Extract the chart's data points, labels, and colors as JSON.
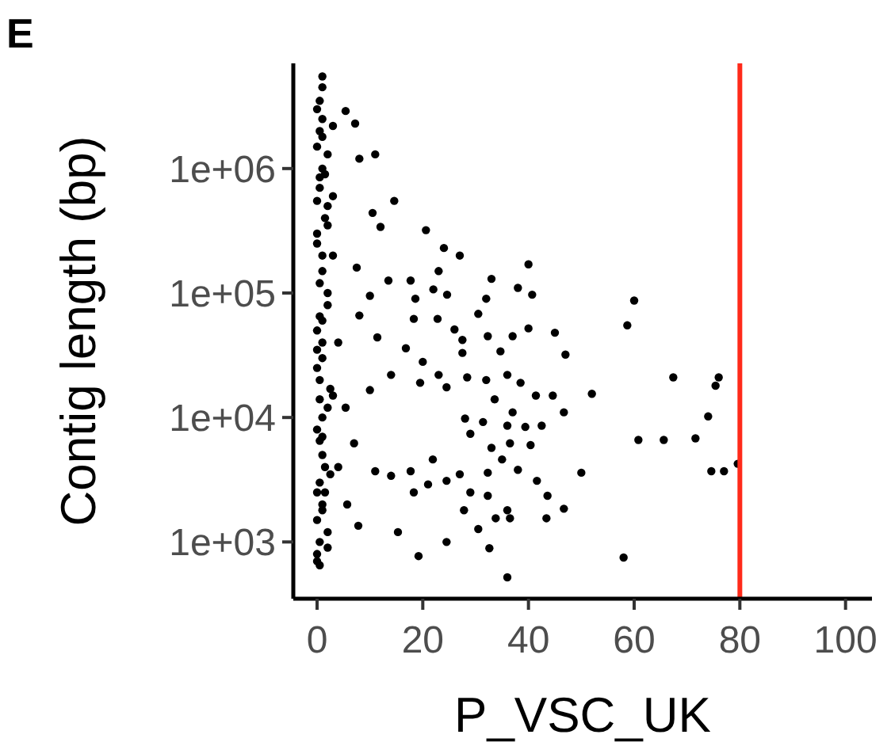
{
  "chart_data": {
    "type": "scatter",
    "title": "E",
    "xlabel": "P_VSC_UK",
    "ylabel": "Contig length (bp)",
    "xlim": [
      -4.5,
      105
    ],
    "xticks": [
      0,
      20,
      40,
      60,
      80,
      100
    ],
    "ylim": [
      350,
      7000000
    ],
    "yticks": [
      {
        "value": 1000,
        "label": "1e+03"
      },
      {
        "value": 10000,
        "label": "1e+04"
      },
      {
        "value": 100000,
        "label": "1e+05"
      },
      {
        "value": 1000000,
        "label": "1e+06"
      }
    ],
    "log": "y",
    "grid": false,
    "marker": "circle",
    "ref_lines": [
      {
        "axis": "x",
        "value": 80,
        "color": "#ff2a1a"
      }
    ],
    "series": [
      {
        "color": "#000000",
        "x": [
          1,
          0.5,
          1,
          0,
          1,
          0.5,
          2,
          0,
          1,
          0.5,
          2,
          0,
          1,
          0.5,
          2,
          0,
          1,
          0.5,
          1,
          0,
          0.5,
          0,
          0.5,
          3,
          3,
          3,
          4,
          3,
          4,
          2,
          0,
          1,
          2,
          0.5,
          1.5,
          0,
          1,
          2,
          0.5,
          1,
          0,
          2.5,
          1,
          0.5,
          1.5,
          0,
          1,
          2,
          0,
          1,
          0.5,
          1.5,
          0,
          2,
          1,
          0,
          0.5,
          1,
          2.5,
          1.5,
          5.4,
          7.2,
          11,
          8,
          14.6,
          10.5,
          12,
          20.6,
          24,
          27,
          23,
          40,
          13.5,
          17.7,
          33,
          22,
          10,
          18.6,
          24.6,
          32,
          38,
          40.7,
          18.3,
          22.8,
          30.5,
          26,
          40,
          45,
          11.4,
          16.8,
          27.5,
          32.3,
          37,
          47,
          27.5,
          34.7,
          20,
          23,
          14,
          10,
          19.5,
          24.5,
          28.4,
          32,
          36,
          38.5,
          41.4,
          44.6,
          52,
          33.6,
          37,
          46.7,
          28,
          31.4,
          36,
          39.4,
          42.5,
          29,
          33,
          36.5,
          40.4,
          35,
          38,
          21.9,
          11,
          14,
          17.7,
          21,
          24.5,
          27,
          29,
          32.3,
          32.3,
          41.6,
          43.6,
          50,
          18.3,
          27.8,
          36,
          36.5,
          33.8,
          43.4,
          46.7,
          30.5,
          15.3,
          7.8,
          24.5,
          32.6,
          19.2,
          36,
          5.7,
          7,
          5.4,
          8,
          7.5,
          60,
          58.7,
          67.4,
          76,
          75.4,
          74,
          60.8,
          65.6,
          71.6,
          74.6,
          77,
          79.6,
          58
        ],
        "values": [
          4500000,
          3500000,
          2500000,
          1500000,
          1000000,
          700000,
          500000,
          300000,
          200000,
          120000,
          80000,
          50000,
          30000,
          20000,
          12000,
          8000,
          5000,
          3000,
          2000,
          1500,
          1000,
          800,
          650,
          2200000,
          600000,
          200000,
          40000,
          15000,
          4000,
          1200,
          3000000,
          1800000,
          1300000,
          850000,
          400000,
          250000,
          150000,
          100000,
          65000,
          40000,
          25000,
          17000,
          10000,
          6500,
          4000,
          2500,
          1800,
          900,
          700,
          5500000,
          2000000,
          900000,
          550000,
          350000,
          60000,
          35000,
          14000,
          7000,
          3500,
          2500,
          2900000,
          2300000,
          1300000,
          1200000,
          550000,
          440000,
          340000,
          320000,
          230000,
          200000,
          150000,
          170000,
          126000,
          126000,
          130000,
          107000,
          95000,
          90000,
          97000,
          90000,
          110000,
          97000,
          62000,
          62000,
          68000,
          51000,
          52000,
          48000,
          44000,
          36000,
          42000,
          45000,
          45000,
          32000,
          33000,
          34000,
          28000,
          22000,
          22000,
          16600,
          19000,
          17500,
          21000,
          20000,
          22000,
          19000,
          15000,
          15000,
          15500,
          14000,
          11000,
          11000,
          9800,
          9200,
          8600,
          8400,
          8600,
          7400,
          5700,
          6200,
          6000,
          4600,
          3800,
          4600,
          3700,
          3400,
          3700,
          2900,
          3100,
          3500,
          2500,
          2350,
          3600,
          3100,
          2350,
          3600,
          2500,
          1800,
          1800,
          1550,
          1550,
          1550,
          1850,
          1270,
          1200,
          1350,
          1000,
          890,
          770,
          520,
          2000,
          6200,
          12000,
          66000,
          160000,
          87000,
          55000,
          21000,
          21000,
          18000,
          10200,
          6600,
          6600,
          6800,
          3700,
          3700,
          4250,
          750
        ]
      }
    ]
  }
}
